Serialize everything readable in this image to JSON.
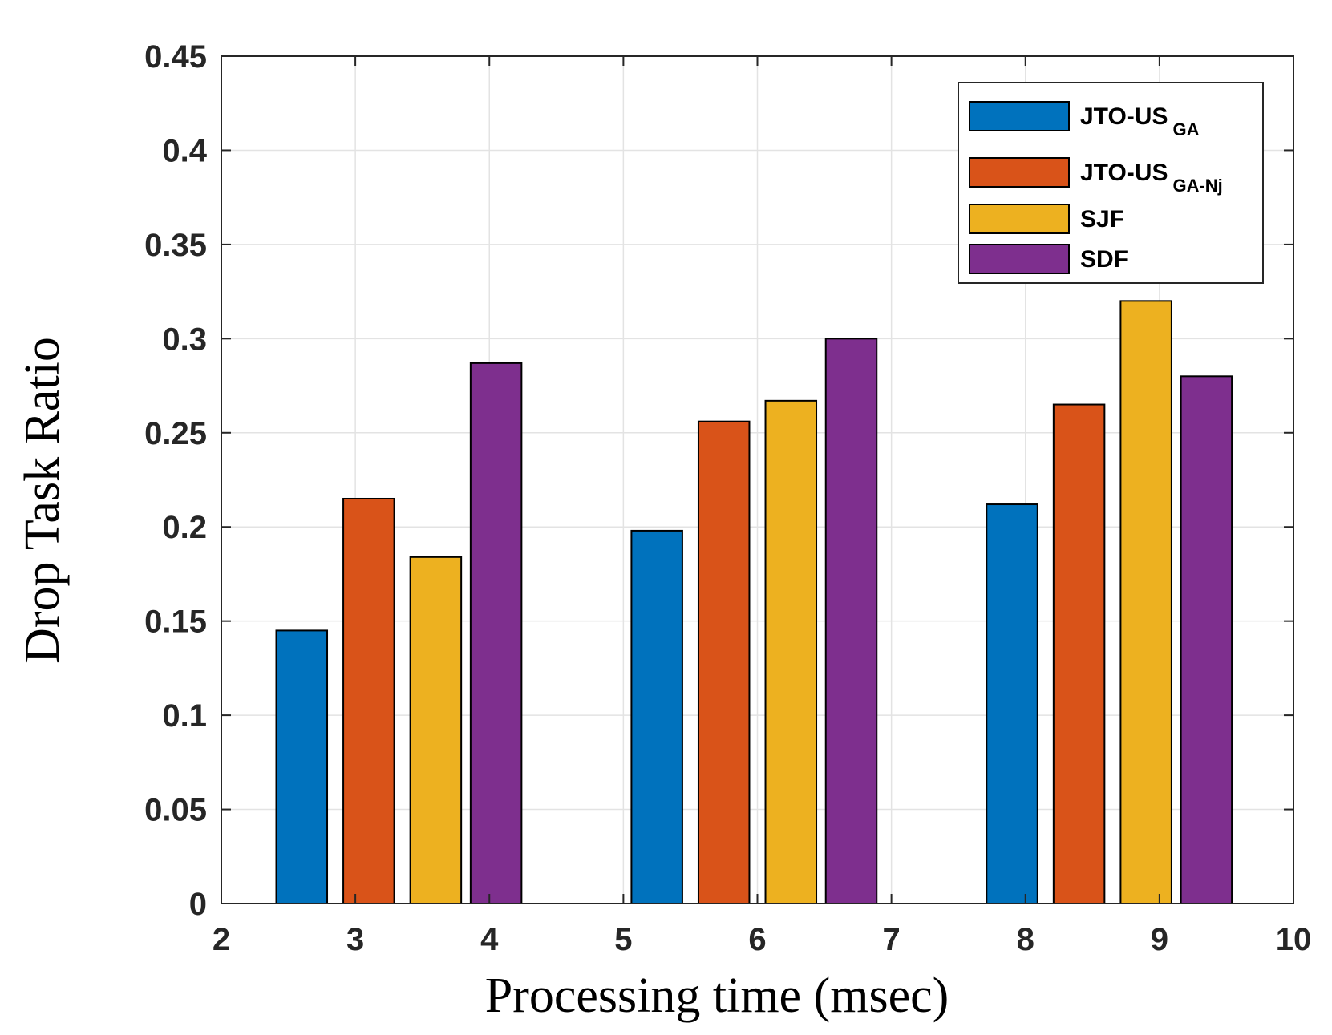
{
  "chart_data": {
    "type": "bar",
    "title": "",
    "xlabel": "Processing time (msec)",
    "ylabel": "Drop Task Ratio",
    "xlim": [
      2,
      10
    ],
    "ylim": [
      0,
      0.45
    ],
    "xticks": [
      "2",
      "3",
      "4",
      "5",
      "6",
      "7",
      "8",
      "9",
      "10"
    ],
    "yticks": [
      "0",
      "0.05",
      "0.1",
      "0.15",
      "0.2",
      "0.25",
      "0.3",
      "0.35",
      "0.4",
      "0.45"
    ],
    "grid": true,
    "legend_position": "top-right",
    "group_centers": [
      3.5,
      6.15,
      8.85
    ],
    "series": [
      {
        "name": "JTO-US",
        "subscript": "GA",
        "color": "#0072BD",
        "x": [
          2.6,
          5.25,
          7.9
        ],
        "values": [
          0.145,
          0.198,
          0.212
        ]
      },
      {
        "name": "JTO-US",
        "subscript": "GA-Nj",
        "color": "#D95319",
        "x": [
          3.1,
          5.75,
          8.4
        ],
        "values": [
          0.215,
          0.256,
          0.265
        ]
      },
      {
        "name": "SJF",
        "subscript": "",
        "color": "#EDB120",
        "x": [
          3.6,
          6.25,
          8.9
        ],
        "values": [
          0.184,
          0.267,
          0.32
        ]
      },
      {
        "name": "SDF",
        "subscript": "",
        "color": "#7E2F8E",
        "x": [
          4.05,
          6.7,
          9.35
        ],
        "values": [
          0.287,
          0.3,
          0.28
        ]
      }
    ]
  }
}
